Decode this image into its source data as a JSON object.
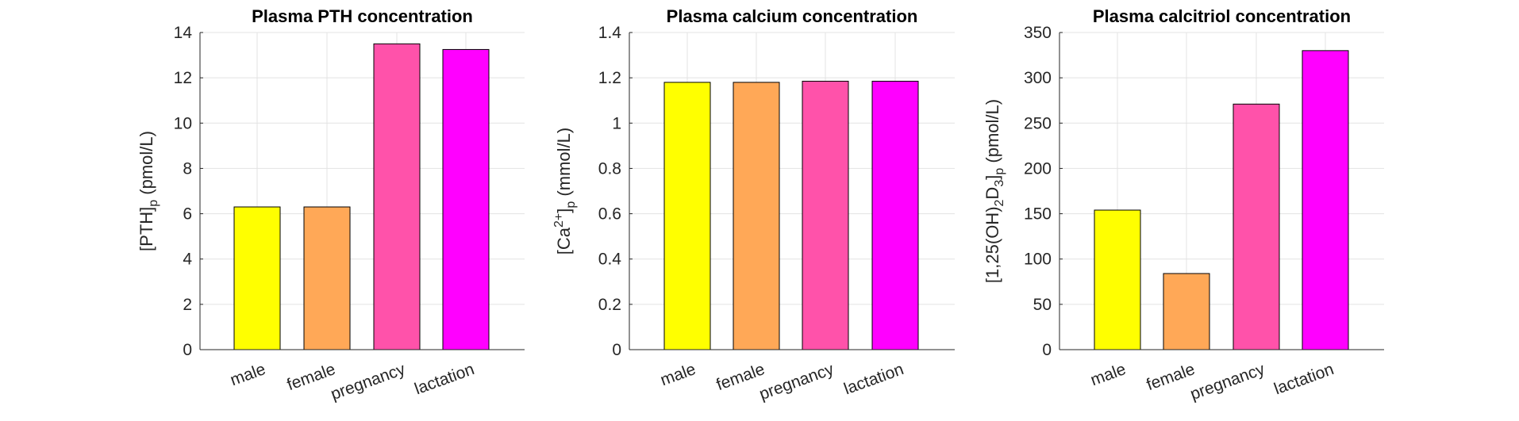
{
  "chart_data": [
    {
      "type": "bar",
      "title": "Plasma PTH concentration",
      "ylabel": {
        "pre": "[PTH]",
        "sub": "p",
        "unit": "(pmol/L)"
      },
      "categories": [
        "male",
        "female",
        "pregnancy",
        "lactation"
      ],
      "values": [
        6.3,
        6.3,
        13.5,
        13.25
      ],
      "ylim": [
        0,
        14
      ],
      "yticks": [
        0,
        2,
        4,
        6,
        8,
        10,
        12,
        14
      ],
      "ytick_labels": [
        "0",
        "2",
        "4",
        "6",
        "8",
        "10",
        "12",
        "14"
      ],
      "grid": true
    },
    {
      "type": "bar",
      "title": "Plasma calcium concentration",
      "ylabel": {
        "pre": "[Ca",
        "sup": "2+",
        "mid": "]",
        "sub": "p",
        "unit": "(mmol/L)"
      },
      "categories": [
        "male",
        "female",
        "pregnancy",
        "lactation"
      ],
      "values": [
        1.18,
        1.18,
        1.185,
        1.185
      ],
      "ylim": [
        0,
        1.4
      ],
      "yticks": [
        0,
        0.2,
        0.4,
        0.6,
        0.8,
        1,
        1.2,
        1.4
      ],
      "ytick_labels": [
        "0",
        "0.2",
        "0.4",
        "0.6",
        "0.8",
        "1",
        "1.2",
        "1.4"
      ],
      "grid": true
    },
    {
      "type": "bar",
      "title": "Plasma calcitriol concentration",
      "ylabel": {
        "pre": "[1,25(OH)",
        "sub1": "2",
        "mid": "D",
        "sub2": "3",
        "mid2": "]",
        "sub": "p",
        "unit": "(pmol/L)"
      },
      "categories": [
        "male",
        "female",
        "pregnancy",
        "lactation"
      ],
      "values": [
        154,
        84,
        271,
        330
      ],
      "ylim": [
        0,
        350
      ],
      "yticks": [
        0,
        50,
        100,
        150,
        200,
        250,
        300,
        350
      ],
      "ytick_labels": [
        "0",
        "50",
        "100",
        "150",
        "200",
        "250",
        "300",
        "350"
      ],
      "grid": true
    }
  ],
  "colors": {
    "male": "#ffff00",
    "female": "#ffa857",
    "pregnancy": "#ff52aa",
    "lactation": "#ff00ff",
    "grid": "#e3e3e3",
    "axis": "#262626"
  }
}
